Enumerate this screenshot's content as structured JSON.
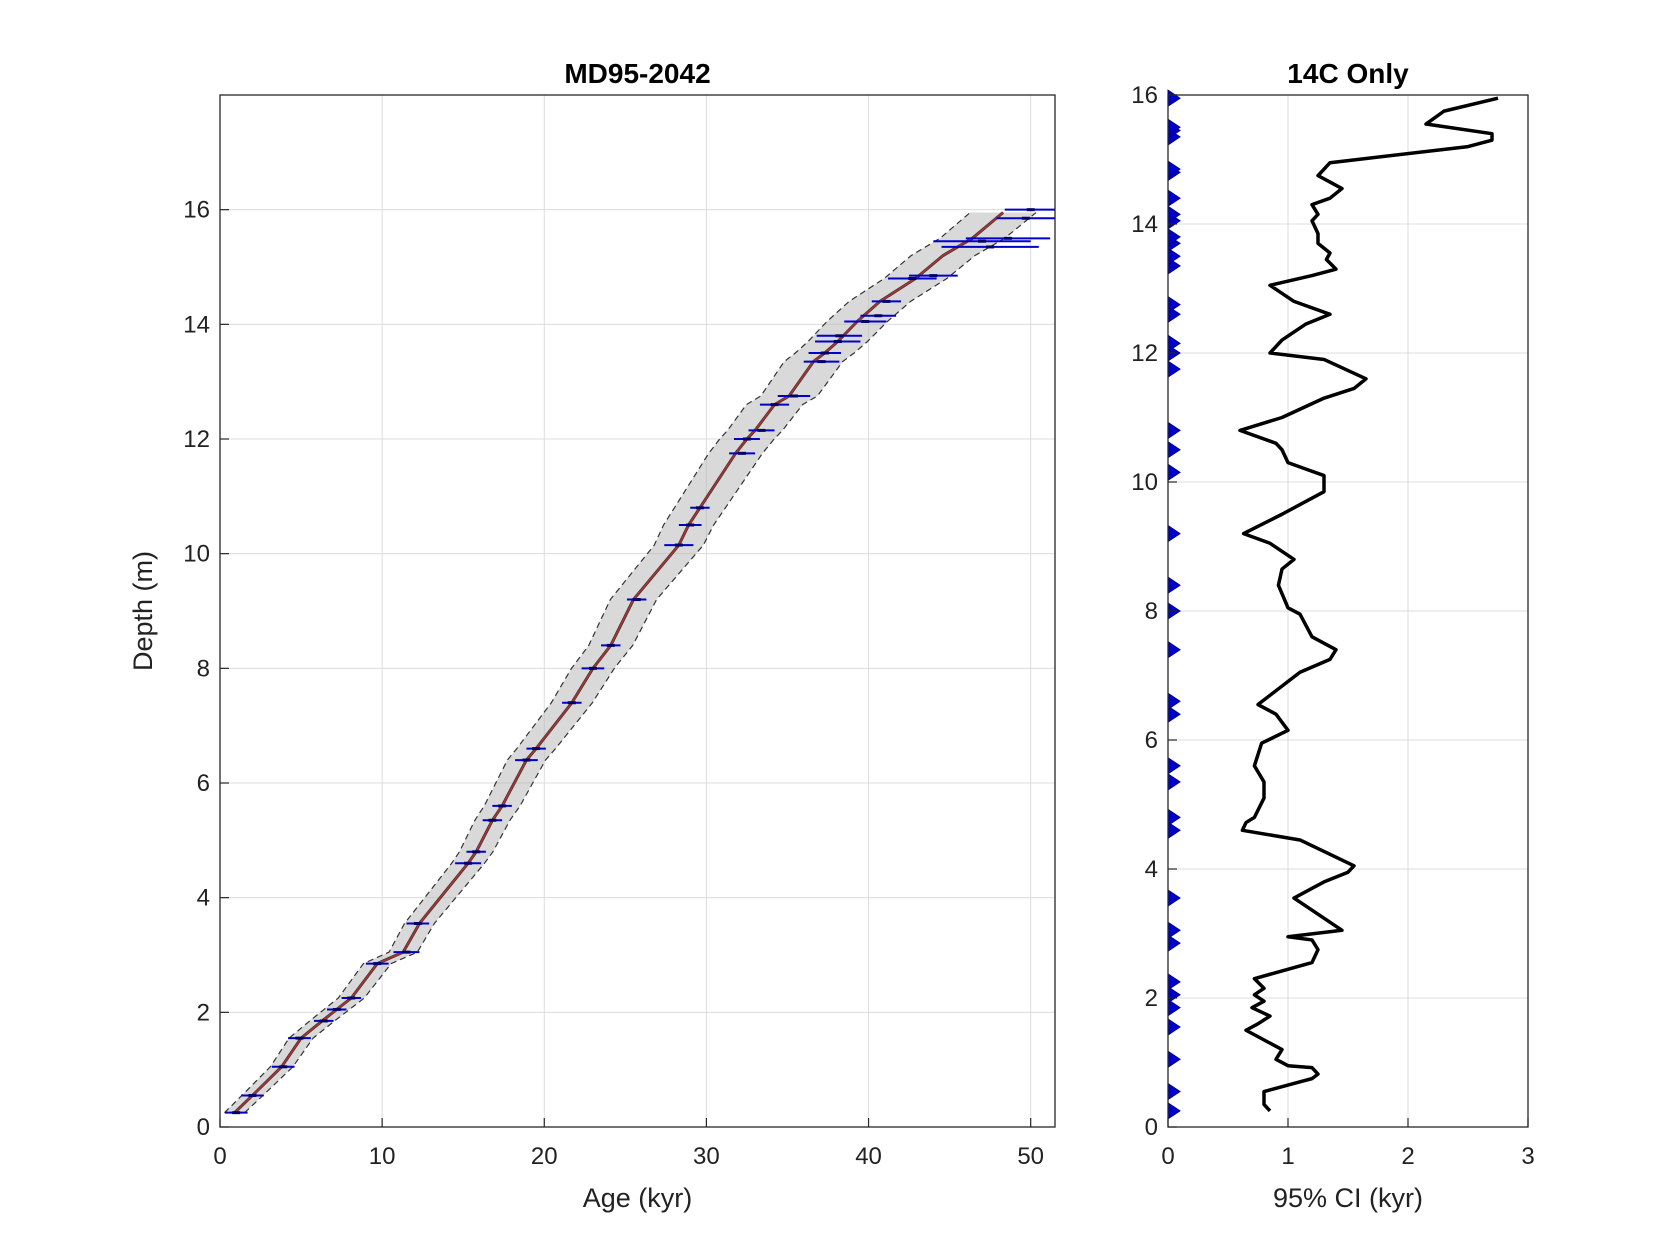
{
  "chart_data": [
    {
      "type": "scatter",
      "title": "MD95-2042",
      "xlabel": "Age (kyr)",
      "ylabel": "Depth (m)",
      "xlim": [
        0,
        51.5
      ],
      "ylim": [
        0,
        18
      ],
      "xticks": [
        0,
        10,
        20,
        30,
        40,
        50
      ],
      "yticks": [
        0,
        2,
        4,
        6,
        8,
        10,
        12,
        14,
        16
      ],
      "grid": true,
      "colors": {
        "median": "#b03030",
        "band": "#b9b9b9",
        "ci": "#333333",
        "dates": "#0000cc"
      },
      "series": [
        {
          "kind": "line",
          "depth": [
            0.25,
            0.55,
            1.05,
            1.55,
            1.85,
            2.05,
            2.25,
            2.85,
            3.05,
            3.55,
            4.6,
            4.8,
            5.35,
            5.6,
            6.4,
            6.6,
            7.4,
            8.0,
            8.4,
            9.2,
            10.15,
            10.5,
            10.8,
            11.75,
            12.0,
            12.15,
            12.6,
            12.75,
            13.35,
            13.5,
            13.7,
            14.05,
            14.4,
            14.8,
            15.2,
            15.5,
            15.95
          ],
          "age": [
            0.9,
            2.0,
            3.8,
            5.0,
            6.3,
            7.2,
            8.1,
            9.7,
            11.3,
            12.3,
            15.3,
            15.8,
            16.8,
            17.4,
            18.9,
            19.5,
            21.7,
            23.0,
            24.1,
            25.5,
            28.3,
            28.9,
            29.6,
            31.8,
            32.5,
            33.0,
            34.2,
            35.1,
            36.6,
            37.3,
            38.1,
            39.3,
            40.7,
            42.9,
            44.6,
            46.4,
            48.3
          ]
        },
        {
          "kind": "errorbar",
          "depth": [
            0.25,
            0.55,
            1.05,
            1.55,
            1.85,
            2.05,
            2.25,
            2.85,
            3.05,
            3.55,
            4.6,
            4.8,
            5.35,
            5.6,
            6.4,
            6.6,
            7.4,
            8.0,
            8.4,
            9.2,
            10.15,
            10.5,
            10.8,
            11.75,
            12.0,
            12.15,
            12.6,
            12.75,
            13.35,
            13.5,
            13.7,
            13.8,
            14.05,
            14.15,
            14.4,
            14.8,
            14.85,
            15.35,
            15.45,
            15.5,
            15.85,
            16.0
          ],
          "age": [
            1.0,
            2.0,
            3.9,
            4.9,
            6.4,
            7.2,
            8.1,
            9.7,
            11.5,
            12.2,
            15.3,
            15.8,
            16.8,
            17.4,
            18.9,
            19.5,
            21.7,
            23.0,
            24.1,
            25.7,
            28.3,
            29.0,
            29.6,
            32.2,
            32.5,
            33.4,
            34.2,
            35.4,
            37.1,
            37.3,
            38.1,
            38.2,
            39.8,
            40.6,
            41.1,
            42.7,
            44.0,
            47.5,
            47.0,
            48.6,
            49.7,
            50.0
          ],
          "err": [
            0.7,
            0.7,
            0.7,
            0.7,
            0.6,
            0.6,
            0.6,
            0.7,
            0.8,
            0.7,
            0.8,
            0.6,
            0.6,
            0.6,
            0.7,
            0.6,
            0.6,
            0.7,
            0.6,
            0.6,
            0.9,
            0.7,
            0.6,
            0.8,
            0.8,
            0.8,
            0.9,
            1.0,
            1.1,
            1.0,
            1.4,
            1.4,
            1.3,
            1.1,
            0.9,
            1.5,
            1.5,
            3.0,
            3.0,
            2.6,
            1.8,
            1.6
          ]
        }
      ]
    },
    {
      "type": "line",
      "title": "14C Only",
      "xlabel": "95% CI (kyr)",
      "ylabel": "",
      "xlim": [
        0,
        3
      ],
      "ylim": [
        0,
        16
      ],
      "xticks": [
        0,
        1,
        2,
        3
      ],
      "yticks": [
        0,
        2,
        4,
        6,
        8,
        10,
        12,
        14,
        16
      ],
      "grid": true,
      "colors": {
        "line": "#000000",
        "markers": "#0000cc"
      },
      "series": [
        {
          "kind": "line",
          "depth": [
            0.25,
            0.35,
            0.55,
            0.7,
            0.75,
            0.82,
            0.92,
            0.95,
            1.05,
            1.2,
            1.5,
            1.6,
            1.72,
            1.85,
            1.95,
            2.05,
            2.15,
            2.3,
            2.55,
            2.75,
            2.9,
            2.95,
            3.05,
            3.55,
            3.8,
            3.95,
            4.05,
            4.45,
            4.6,
            4.72,
            4.8,
            5.1,
            5.35,
            5.6,
            5.95,
            6.15,
            6.4,
            6.55,
            7.05,
            7.25,
            7.4,
            7.6,
            7.95,
            8.05,
            8.4,
            8.65,
            8.8,
            9.05,
            9.2,
            9.5,
            9.85,
            10.1,
            10.2,
            10.3,
            10.5,
            10.6,
            10.8,
            11.0,
            11.3,
            11.45,
            11.6,
            11.9,
            12.0,
            12.2,
            12.45,
            12.6,
            12.8,
            13.05,
            13.2,
            13.3,
            13.45,
            13.55,
            13.7,
            13.85,
            14.05,
            14.15,
            14.3,
            14.4,
            14.55,
            14.65,
            14.75,
            14.85,
            14.95,
            15.2,
            15.3,
            15.4,
            15.55,
            15.75,
            15.95
          ],
          "ci": [
            0.85,
            0.8,
            0.8,
            1.1,
            1.2,
            1.25,
            1.2,
            1.0,
            0.9,
            0.95,
            0.65,
            0.75,
            0.85,
            0.7,
            0.8,
            0.72,
            0.8,
            0.72,
            1.2,
            1.25,
            1.2,
            1.0,
            1.45,
            1.05,
            1.3,
            1.5,
            1.55,
            1.1,
            0.62,
            0.65,
            0.72,
            0.8,
            0.8,
            0.72,
            0.78,
            1.0,
            0.9,
            0.75,
            1.1,
            1.35,
            1.4,
            1.2,
            1.1,
            1.0,
            0.92,
            0.95,
            1.05,
            0.85,
            0.63,
            0.95,
            1.3,
            1.3,
            1.15,
            1.0,
            0.95,
            0.9,
            0.6,
            0.95,
            1.3,
            1.55,
            1.65,
            1.3,
            0.85,
            0.95,
            1.15,
            1.35,
            1.05,
            0.85,
            1.2,
            1.4,
            1.32,
            1.35,
            1.25,
            1.25,
            1.2,
            1.25,
            1.2,
            1.35,
            1.45,
            1.35,
            1.25,
            1.3,
            1.35,
            2.5,
            2.7,
            2.7,
            2.15,
            2.3,
            2.75
          ]
        },
        {
          "kind": "markers",
          "depth": [
            0.25,
            0.55,
            1.05,
            1.55,
            1.85,
            2.05,
            2.25,
            2.85,
            3.05,
            3.55,
            4.6,
            4.8,
            5.35,
            5.6,
            6.4,
            6.6,
            7.4,
            8.0,
            8.4,
            9.2,
            10.15,
            10.5,
            10.8,
            11.75,
            12.0,
            12.15,
            12.6,
            12.75,
            13.35,
            13.5,
            13.7,
            13.8,
            14.05,
            14.15,
            14.4,
            14.8,
            14.85,
            15.35,
            15.45,
            15.5,
            15.95
          ],
          "ci": [
            0,
            0,
            0,
            0,
            0,
            0,
            0,
            0,
            0,
            0,
            0,
            0,
            0,
            0,
            0,
            0,
            0,
            0,
            0,
            0,
            0,
            0,
            0,
            0,
            0,
            0,
            0,
            0,
            0,
            0,
            0,
            0,
            0,
            0,
            0,
            0,
            0,
            0,
            0,
            0,
            0
          ]
        }
      ]
    }
  ]
}
